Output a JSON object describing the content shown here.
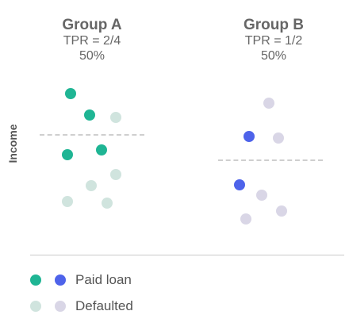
{
  "groups": [
    {
      "id": "group-a",
      "title": "Group A",
      "metric": "TPR = 2/4",
      "rate": "50%",
      "paid_color": "#1fb594",
      "default_color": "#d0e4de",
      "points": [
        {
          "status": "paid",
          "side": "above"
        },
        {
          "status": "paid",
          "side": "above"
        },
        {
          "status": "defaulted",
          "side": "above"
        },
        {
          "status": "paid",
          "side": "below"
        },
        {
          "status": "paid",
          "side": "below"
        },
        {
          "status": "defaulted",
          "side": "below"
        },
        {
          "status": "defaulted",
          "side": "below"
        },
        {
          "status": "defaulted",
          "side": "below"
        },
        {
          "status": "defaulted",
          "side": "below"
        }
      ]
    },
    {
      "id": "group-b",
      "title": "Group B",
      "metric": "TPR = 1/2",
      "rate": "50%",
      "paid_color": "#4e63ea",
      "default_color": "#d9d6e6",
      "points": [
        {
          "status": "defaulted",
          "side": "above"
        },
        {
          "status": "paid",
          "side": "above"
        },
        {
          "status": "defaulted",
          "side": "above"
        },
        {
          "status": "paid",
          "side": "below"
        },
        {
          "status": "defaulted",
          "side": "below"
        },
        {
          "status": "defaulted",
          "side": "below"
        },
        {
          "status": "defaulted",
          "side": "below"
        }
      ]
    }
  ],
  "axis": {
    "y_label": "Income"
  },
  "legend": {
    "paid_label": "Paid loan",
    "defaulted_label": "Defaulted"
  },
  "colors": {
    "threshold": "#cfcfcf",
    "divider": "#c9c9c9"
  }
}
